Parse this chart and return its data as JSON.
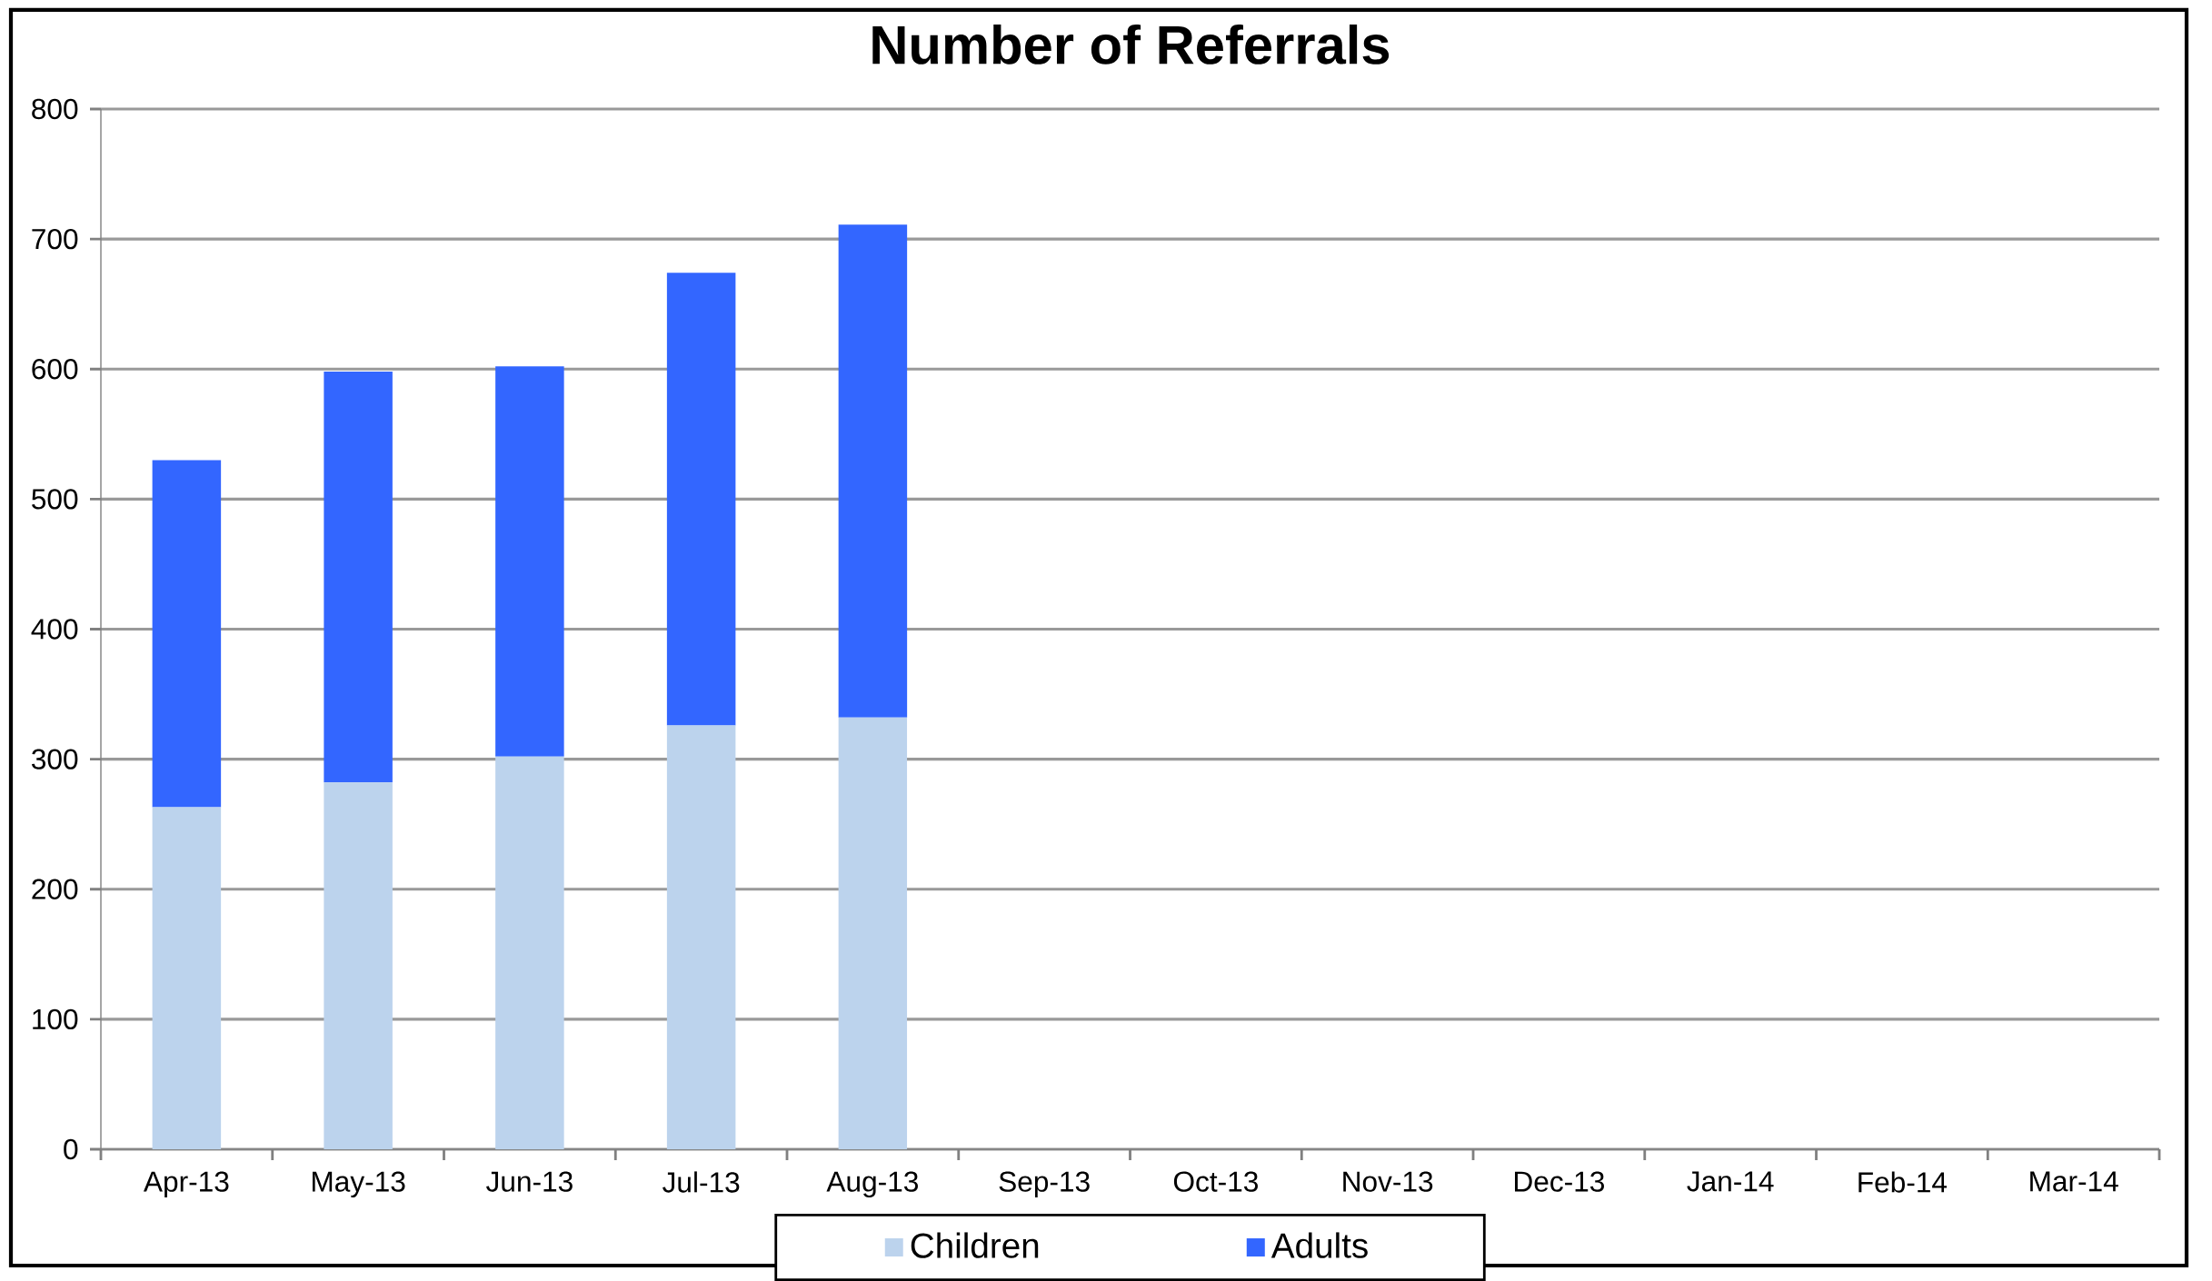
{
  "chart_data": {
    "type": "bar",
    "title": "Number of Referrals",
    "stacked": true,
    "grid": "y",
    "legend": "bottom",
    "categories": [
      "Apr-13",
      "May-13",
      "Jun-13",
      "Jul-13",
      "Aug-13",
      "Sep-13",
      "Oct-13",
      "Nov-13",
      "Dec-13",
      "Jan-14",
      "Feb-14",
      "Mar-14"
    ],
    "series": [
      {
        "name": "Children",
        "color": "#bcd3ed",
        "values": [
          263,
          282,
          302,
          326,
          332,
          null,
          null,
          null,
          null,
          null,
          null,
          null
        ]
      },
      {
        "name": "Adults",
        "color": "#3366ff",
        "values": [
          267,
          316,
          300,
          348,
          379,
          null,
          null,
          null,
          null,
          null,
          null,
          null
        ]
      }
    ],
    "ylim": [
      0,
      800
    ],
    "yticks": [
      0,
      100,
      200,
      300,
      400,
      500,
      600,
      700,
      800
    ]
  }
}
